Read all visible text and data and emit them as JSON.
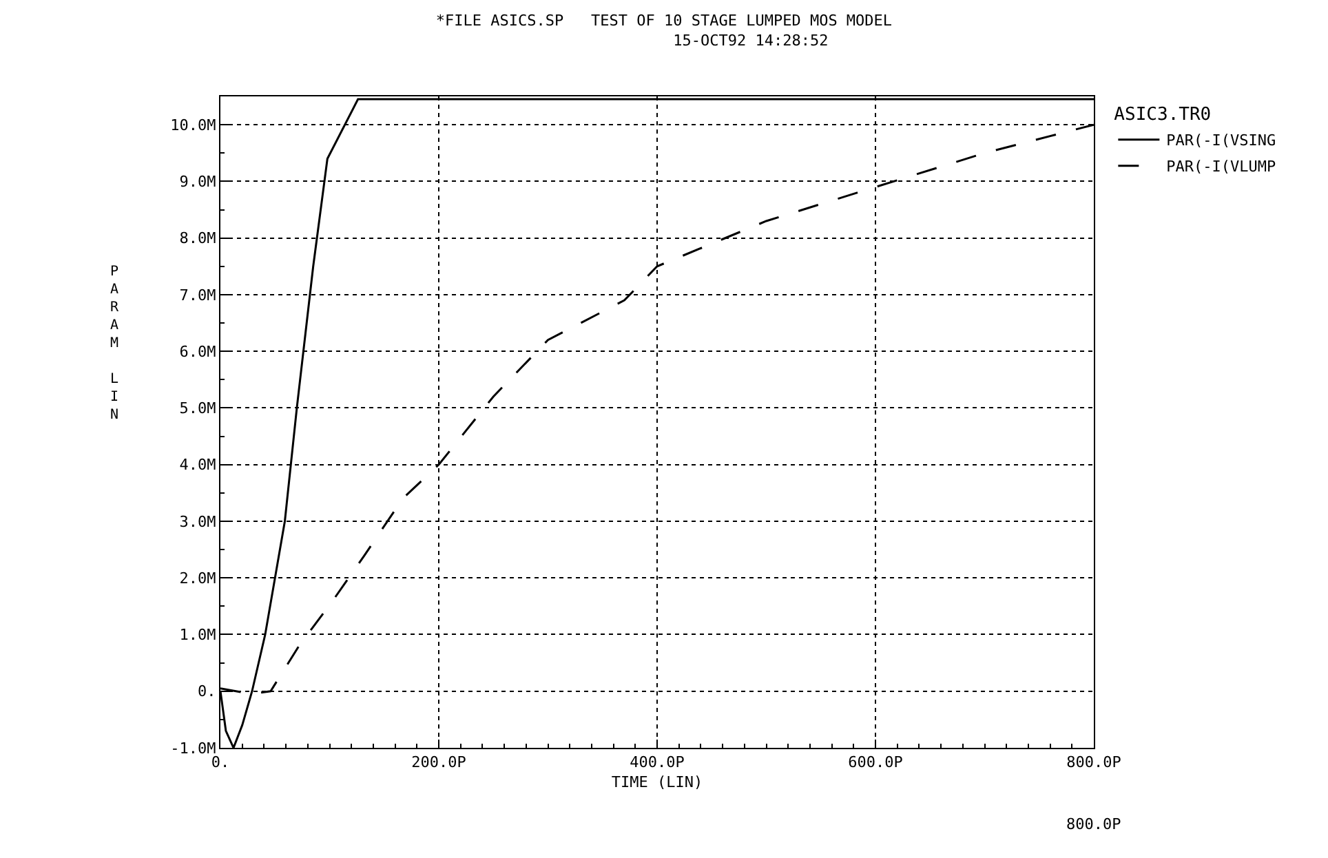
{
  "chart_data": {
    "type": "line",
    "title": "*FILE ASICS.SP   TEST OF 10 STAGE LUMPED MOS MODEL",
    "subtitle": "15-OCT92 14:28:52",
    "xlabel": "TIME (LIN)",
    "ylabel": "PARAM LIN",
    "legend_title": "ASIC3.TR0",
    "xlim": [
      0,
      800
    ],
    "xticks": [
      {
        "value": 0,
        "label": "0."
      },
      {
        "value": 200,
        "label": "200.0P"
      },
      {
        "value": 400,
        "label": "400.0P"
      },
      {
        "value": 600,
        "label": "600.0P"
      },
      {
        "value": 800,
        "label": "800.0P"
      }
    ],
    "ylim": [
      -1,
      10.5
    ],
    "yticks": [
      {
        "value": -1,
        "label": "-1.0M"
      },
      {
        "value": 0,
        "label": "0."
      },
      {
        "value": 1,
        "label": "1.0M"
      },
      {
        "value": 2,
        "label": "2.0M"
      },
      {
        "value": 3,
        "label": "3.0M"
      },
      {
        "value": 4,
        "label": "4.0M"
      },
      {
        "value": 5,
        "label": "5.0M"
      },
      {
        "value": 6,
        "label": "6.0M"
      },
      {
        "value": 7,
        "label": "7.0M"
      },
      {
        "value": 8,
        "label": "8.0M"
      },
      {
        "value": 9,
        "label": "9.0M"
      },
      {
        "value": 10,
        "label": "10.0M"
      }
    ],
    "grid": true,
    "legend": "right",
    "annotations": [
      "800.0P"
    ],
    "series": [
      {
        "name": "PAR(-I(VSING",
        "color": "#000000",
        "line_style": "solid",
        "x": [
          0,
          5,
          12,
          20,
          29,
          41,
          50,
          59,
          70,
          85,
          98,
          126,
          800
        ],
        "values": [
          0,
          -0.7,
          -1.0,
          -0.6,
          0,
          1,
          2,
          3,
          5,
          7.5,
          9.4,
          10.45,
          10.45
        ]
      },
      {
        "name": "PAR(-I(VLUMP",
        "color": "#000000",
        "line_style": "dashed",
        "x": [
          0,
          28,
          46,
          72,
          103,
          132,
          167,
          200,
          250,
          300,
          370,
          400,
          500,
          600,
          700,
          800
        ],
        "values": [
          0.05,
          -0.05,
          0,
          0.8,
          1.6,
          2.4,
          3.4,
          4.0,
          5.2,
          6.2,
          6.9,
          7.5,
          8.3,
          8.9,
          9.5,
          10.0
        ]
      }
    ]
  }
}
